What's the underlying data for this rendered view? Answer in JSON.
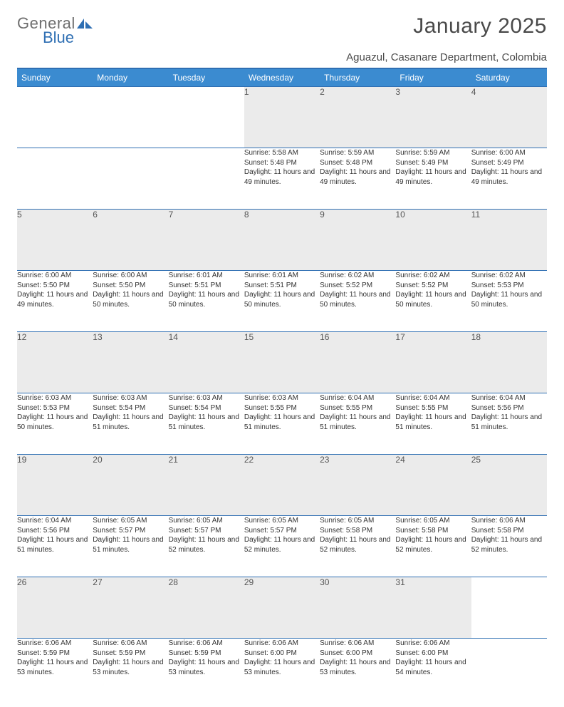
{
  "logo": {
    "text1": "General",
    "text2": "Blue"
  },
  "title": "January 2025",
  "location": "Aguazul, Casanare Department, Colombia",
  "colors": {
    "header_bg": "#3b8bd0",
    "header_text": "#ffffff",
    "rule": "#2f6fb3",
    "daynum_bg": "#ebebeb",
    "text": "#333333",
    "logo_gray": "#6e6e6e",
    "logo_blue": "#2f6fb3"
  },
  "weekdays": [
    "Sunday",
    "Monday",
    "Tuesday",
    "Wednesday",
    "Thursday",
    "Friday",
    "Saturday"
  ],
  "weeks": [
    [
      null,
      null,
      null,
      {
        "n": "1",
        "sr": "5:58 AM",
        "ss": "5:48 PM",
        "dl": "11 hours and 49 minutes."
      },
      {
        "n": "2",
        "sr": "5:59 AM",
        "ss": "5:48 PM",
        "dl": "11 hours and 49 minutes."
      },
      {
        "n": "3",
        "sr": "5:59 AM",
        "ss": "5:49 PM",
        "dl": "11 hours and 49 minutes."
      },
      {
        "n": "4",
        "sr": "6:00 AM",
        "ss": "5:49 PM",
        "dl": "11 hours and 49 minutes."
      }
    ],
    [
      {
        "n": "5",
        "sr": "6:00 AM",
        "ss": "5:50 PM",
        "dl": "11 hours and 49 minutes."
      },
      {
        "n": "6",
        "sr": "6:00 AM",
        "ss": "5:50 PM",
        "dl": "11 hours and 50 minutes."
      },
      {
        "n": "7",
        "sr": "6:01 AM",
        "ss": "5:51 PM",
        "dl": "11 hours and 50 minutes."
      },
      {
        "n": "8",
        "sr": "6:01 AM",
        "ss": "5:51 PM",
        "dl": "11 hours and 50 minutes."
      },
      {
        "n": "9",
        "sr": "6:02 AM",
        "ss": "5:52 PM",
        "dl": "11 hours and 50 minutes."
      },
      {
        "n": "10",
        "sr": "6:02 AM",
        "ss": "5:52 PM",
        "dl": "11 hours and 50 minutes."
      },
      {
        "n": "11",
        "sr": "6:02 AM",
        "ss": "5:53 PM",
        "dl": "11 hours and 50 minutes."
      }
    ],
    [
      {
        "n": "12",
        "sr": "6:03 AM",
        "ss": "5:53 PM",
        "dl": "11 hours and 50 minutes."
      },
      {
        "n": "13",
        "sr": "6:03 AM",
        "ss": "5:54 PM",
        "dl": "11 hours and 51 minutes."
      },
      {
        "n": "14",
        "sr": "6:03 AM",
        "ss": "5:54 PM",
        "dl": "11 hours and 51 minutes."
      },
      {
        "n": "15",
        "sr": "6:03 AM",
        "ss": "5:55 PM",
        "dl": "11 hours and 51 minutes."
      },
      {
        "n": "16",
        "sr": "6:04 AM",
        "ss": "5:55 PM",
        "dl": "11 hours and 51 minutes."
      },
      {
        "n": "17",
        "sr": "6:04 AM",
        "ss": "5:55 PM",
        "dl": "11 hours and 51 minutes."
      },
      {
        "n": "18",
        "sr": "6:04 AM",
        "ss": "5:56 PM",
        "dl": "11 hours and 51 minutes."
      }
    ],
    [
      {
        "n": "19",
        "sr": "6:04 AM",
        "ss": "5:56 PM",
        "dl": "11 hours and 51 minutes."
      },
      {
        "n": "20",
        "sr": "6:05 AM",
        "ss": "5:57 PM",
        "dl": "11 hours and 51 minutes."
      },
      {
        "n": "21",
        "sr": "6:05 AM",
        "ss": "5:57 PM",
        "dl": "11 hours and 52 minutes."
      },
      {
        "n": "22",
        "sr": "6:05 AM",
        "ss": "5:57 PM",
        "dl": "11 hours and 52 minutes."
      },
      {
        "n": "23",
        "sr": "6:05 AM",
        "ss": "5:58 PM",
        "dl": "11 hours and 52 minutes."
      },
      {
        "n": "24",
        "sr": "6:05 AM",
        "ss": "5:58 PM",
        "dl": "11 hours and 52 minutes."
      },
      {
        "n": "25",
        "sr": "6:06 AM",
        "ss": "5:58 PM",
        "dl": "11 hours and 52 minutes."
      }
    ],
    [
      {
        "n": "26",
        "sr": "6:06 AM",
        "ss": "5:59 PM",
        "dl": "11 hours and 53 minutes."
      },
      {
        "n": "27",
        "sr": "6:06 AM",
        "ss": "5:59 PM",
        "dl": "11 hours and 53 minutes."
      },
      {
        "n": "28",
        "sr": "6:06 AM",
        "ss": "5:59 PM",
        "dl": "11 hours and 53 minutes."
      },
      {
        "n": "29",
        "sr": "6:06 AM",
        "ss": "6:00 PM",
        "dl": "11 hours and 53 minutes."
      },
      {
        "n": "30",
        "sr": "6:06 AM",
        "ss": "6:00 PM",
        "dl": "11 hours and 53 minutes."
      },
      {
        "n": "31",
        "sr": "6:06 AM",
        "ss": "6:00 PM",
        "dl": "11 hours and 54 minutes."
      },
      null
    ]
  ],
  "labels": {
    "sunrise": "Sunrise:",
    "sunset": "Sunset:",
    "daylight": "Daylight:"
  }
}
